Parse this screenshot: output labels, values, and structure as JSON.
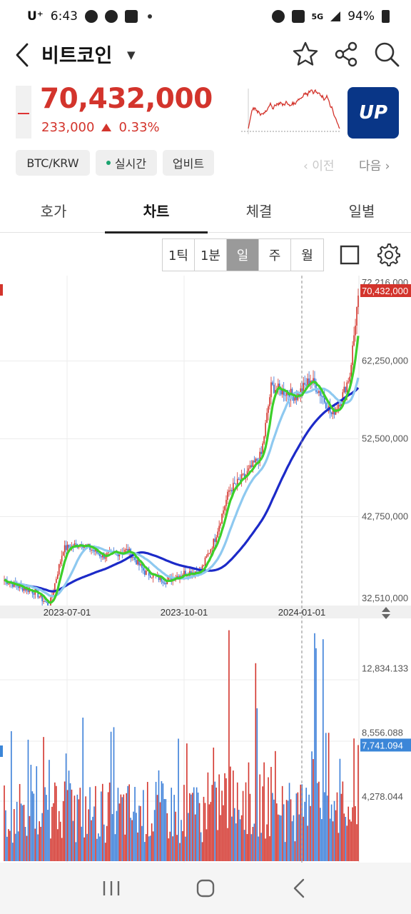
{
  "status_bar": {
    "carrier": "U⁺",
    "time": "6:43",
    "network": "5G",
    "battery": "94%"
  },
  "header": {
    "coin_name": "비트코인",
    "icons": [
      "back-icon",
      "dropdown-caret-icon",
      "star-icon",
      "share-icon",
      "search-icon"
    ]
  },
  "price": {
    "current": "70,432,000",
    "change_amount": "233,000",
    "change_percent": "0.33%",
    "direction": "up",
    "exchange_logo_text": "UP",
    "up_color": "#d3342c",
    "exchange_color": "#093687"
  },
  "chips": {
    "pair": "BTC/KRW",
    "realtime": "실시간",
    "exchange": "업비트",
    "prev": "이전",
    "next": "다음"
  },
  "tabs": [
    {
      "label": "호가",
      "active": false
    },
    {
      "label": "차트",
      "active": true
    },
    {
      "label": "체결",
      "active": false
    },
    {
      "label": "일별",
      "active": false
    }
  ],
  "chart_toolbar": {
    "intervals": [
      {
        "label": "1틱",
        "active": false
      },
      {
        "label": "1분",
        "active": false
      },
      {
        "label": "일",
        "active": true
      },
      {
        "label": "주",
        "active": false
      },
      {
        "label": "월",
        "active": false
      }
    ]
  },
  "chart_data": {
    "type": "candlestick",
    "interval": "daily",
    "x_tick_labels": [
      "2023-07-01",
      "2023-10-01",
      "2024-01-01"
    ],
    "price_axis_labels": [
      "72,216,000",
      "62,250,000",
      "52,500,000",
      "42,750,000",
      "32,510,000"
    ],
    "current_price_label": "70,432,000",
    "ylim": [
      32510000,
      72216000
    ],
    "ma_colors": {
      "short": "#3ccf2a",
      "mid": "#8ec9f0",
      "long": "#1c2ac8"
    },
    "close_checkpoints": [
      {
        "t": 0,
        "close": 34800000
      },
      {
        "t": 10,
        "close": 34000000
      },
      {
        "t": 22,
        "close": 33300000
      },
      {
        "t": 32,
        "close": 31500000
      },
      {
        "t": 42,
        "close": 38700000
      },
      {
        "t": 55,
        "close": 39400000
      },
      {
        "t": 70,
        "close": 37800000
      },
      {
        "t": 88,
        "close": 38500000
      },
      {
        "t": 100,
        "close": 35800000
      },
      {
        "t": 115,
        "close": 34700000
      },
      {
        "t": 128,
        "close": 35700000
      },
      {
        "t": 140,
        "close": 36000000
      },
      {
        "t": 150,
        "close": 40000000
      },
      {
        "t": 160,
        "close": 46000000
      },
      {
        "t": 172,
        "close": 48000000
      },
      {
        "t": 183,
        "close": 50500000
      },
      {
        "t": 190,
        "close": 59000000
      },
      {
        "t": 198,
        "close": 58500000
      },
      {
        "t": 208,
        "close": 57800000
      },
      {
        "t": 218,
        "close": 60000000
      },
      {
        "t": 226,
        "close": 58000000
      },
      {
        "t": 233,
        "close": 55500000
      },
      {
        "t": 240,
        "close": 57500000
      },
      {
        "t": 246,
        "close": 60500000
      },
      {
        "t": 252,
        "close": 70432000
      }
    ],
    "volume": {
      "axis_labels": [
        "12,834.133",
        "8,556.088",
        "4,278.044"
      ],
      "current_label": "7,741.094",
      "ylim": [
        0,
        16000
      ]
    }
  }
}
